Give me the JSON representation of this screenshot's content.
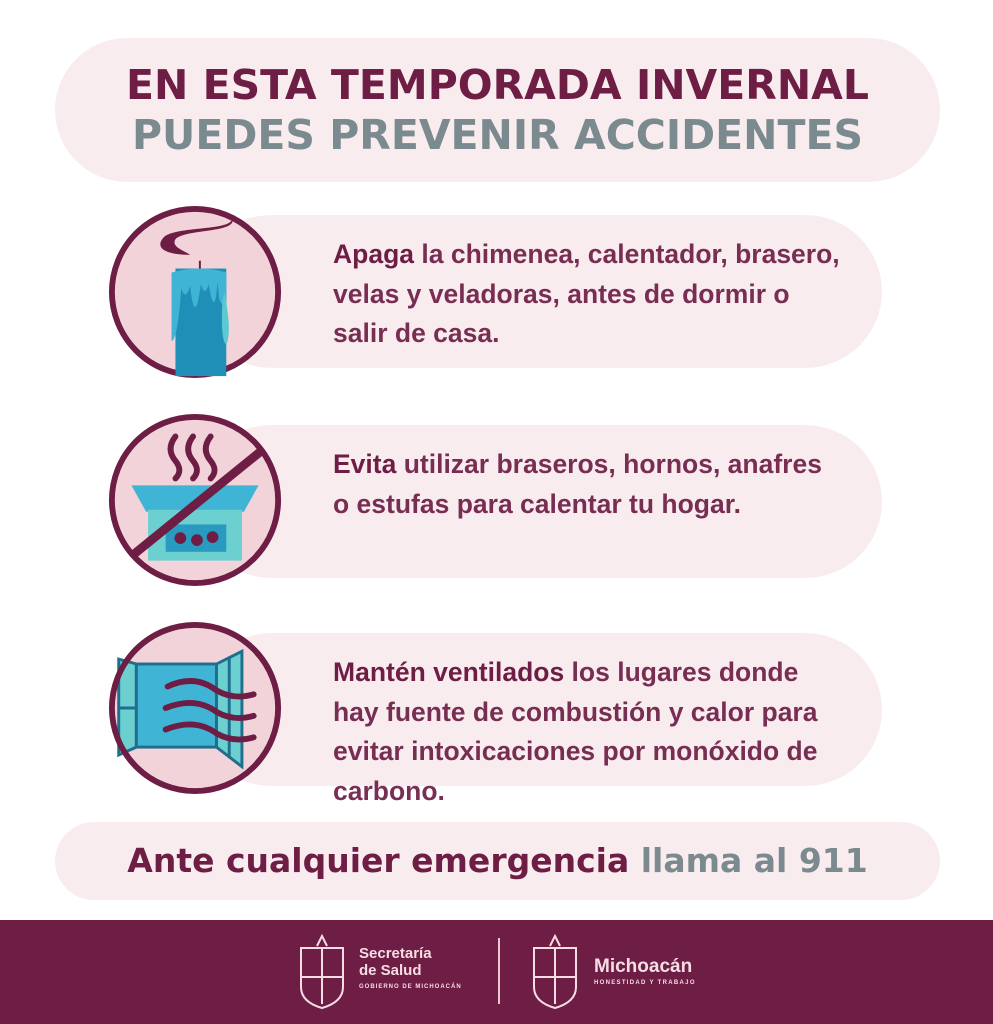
{
  "header": {
    "line1": "EN ESTA TEMPORADA INVERNAL",
    "line2": "PUEDES PREVENIR ACCIDENTES"
  },
  "tips": [
    {
      "icon": "candle-icon",
      "bold": "Apaga",
      "text": " la chimenea, calentador, brasero, velas y veladoras, antes de dormir o salir de casa."
    },
    {
      "icon": "no-brazier-icon",
      "bold": "Evita",
      "text": " utilizar braseros, hornos, anafres o estufas para calentar tu hogar."
    },
    {
      "icon": "open-window-icon",
      "bold": "Mantén ventilados",
      "text": " los lugares donde hay fuente de combustión y calor para evitar intoxicaciones por monóxido de carbono."
    }
  ],
  "emergency": {
    "bold": "Ante cualquier emergencia",
    "gray": " llama al 911"
  },
  "footer": {
    "left": {
      "line1": "Secretaría",
      "line2": "de Salud",
      "sub": "GOBIERNO DE MICHOACÁN"
    },
    "right": {
      "name": "Michoacán",
      "sub": "HONESTIDAD Y TRABAJO"
    }
  },
  "colors": {
    "maroon": "#6e1d45",
    "gray": "#7b8a8e",
    "pill": "#f9ecef",
    "circle": "#f3d3da",
    "teal": "#2a9bc0",
    "light_teal": "#5cc8d2"
  }
}
